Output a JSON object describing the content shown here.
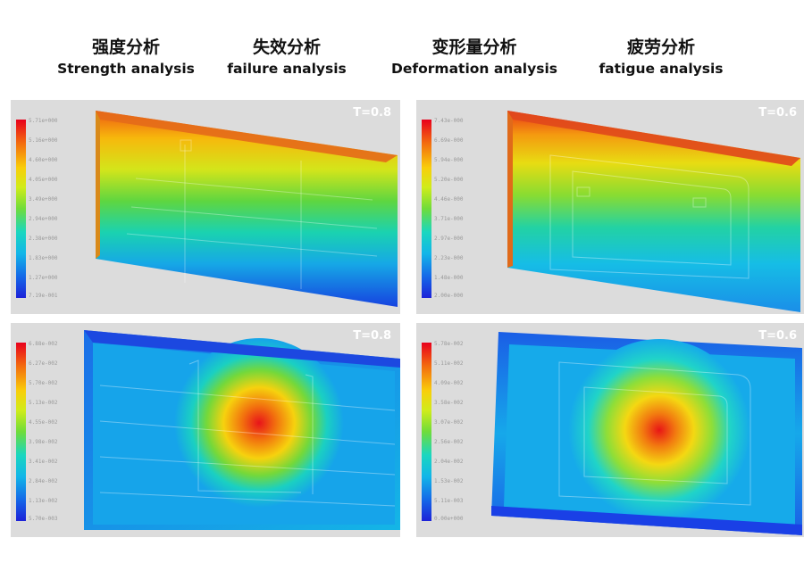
{
  "headers": [
    {
      "zh": "强度分析",
      "en": "Strength analysis"
    },
    {
      "zh": "失效分析",
      "en": "failure analysis"
    },
    {
      "zh": "变形量分析",
      "en": "Deformation analysis"
    },
    {
      "zh": "疲劳分析",
      "en": "fatigue analysis"
    }
  ],
  "panels": [
    {
      "t_label": "T=0.8",
      "pattern": "vertical-gradient",
      "bezel_color": "#e46a1a"
    },
    {
      "t_label": "T=0.6",
      "pattern": "vertical-gradient",
      "bezel_color": "#e0481c"
    },
    {
      "t_label": "T=0.8",
      "pattern": "radial-hotspot",
      "bezel_color": "#1c48e0"
    },
    {
      "t_label": "T=0.6",
      "pattern": "radial-hotspot",
      "bezel_color": "#1a40e6"
    }
  ],
  "colorscale": [
    "#e8001c",
    "#f36a0f",
    "#f9ce0a",
    "#d0ec1a",
    "#6fdc3a",
    "#1ad7bf",
    "#12b6e8",
    "#1468e8",
    "#1d22d8"
  ]
}
